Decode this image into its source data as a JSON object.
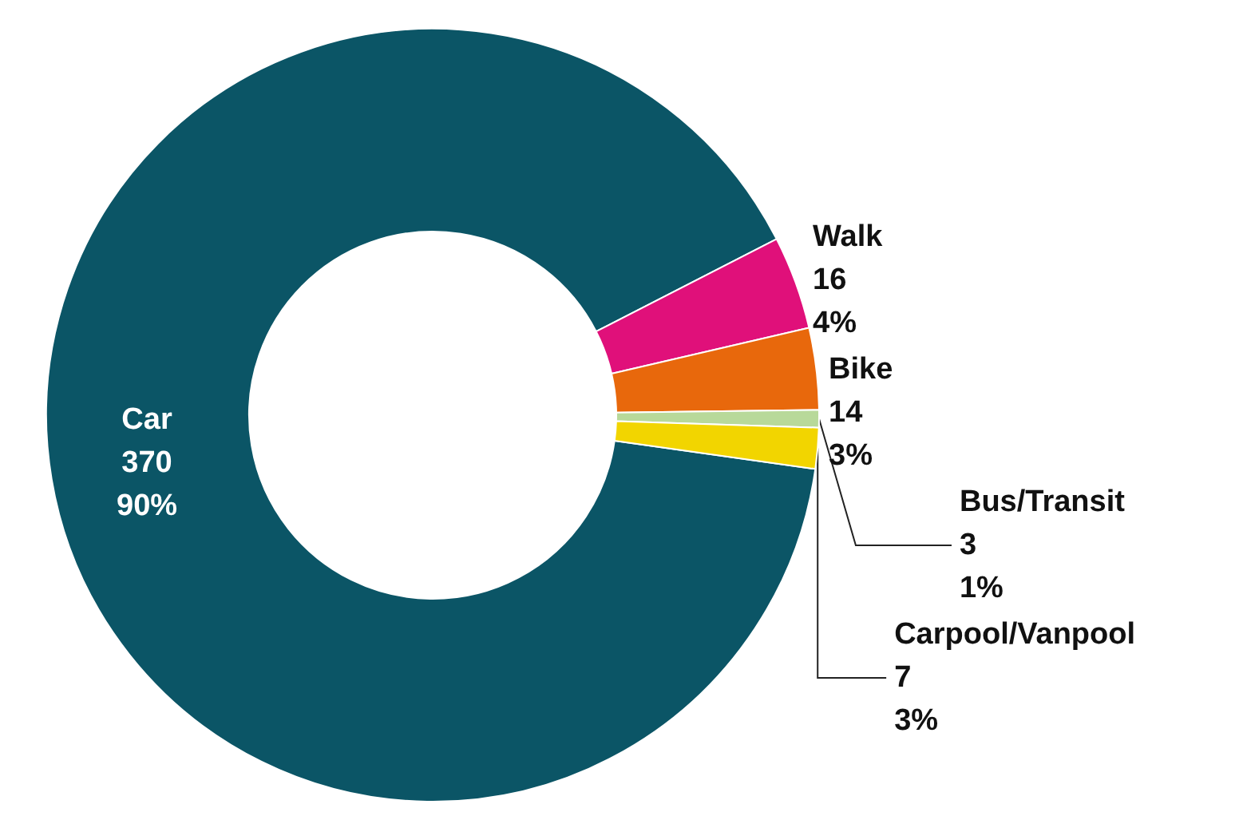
{
  "chart_data": {
    "type": "donut",
    "categories": [
      "Car",
      "Walk",
      "Bike",
      "Bus/Transit",
      "Carpool/Vanpool"
    ],
    "values": [
      370,
      16,
      14,
      3,
      7
    ],
    "colors": [
      "#0b5566",
      "#e0107a",
      "#e8680c",
      "#b8d99a",
      "#f2d500"
    ],
    "value_labels": [
      "370\n90%",
      "16\n4%",
      "14\n3%",
      "3\n1%",
      "7\n3%"
    ],
    "legend": false
  }
}
